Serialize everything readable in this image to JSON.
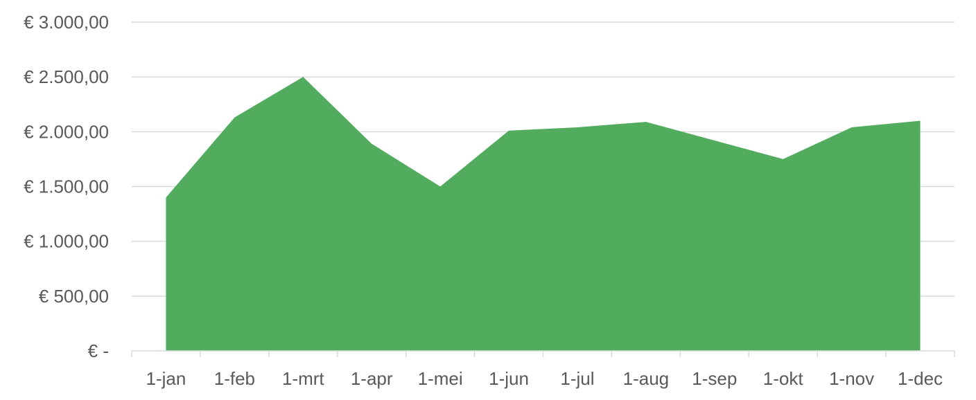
{
  "chart_data": {
    "type": "area",
    "categories": [
      "1-jan",
      "1-feb",
      "1-mrt",
      "1-apr",
      "1-mei",
      "1-jun",
      "1-jul",
      "1-aug",
      "1-sep",
      "1-okt",
      "1-nov",
      "1-dec"
    ],
    "series": [
      {
        "values": [
          1400,
          2130,
          2500,
          1890,
          1500,
          2010,
          2040,
          2090,
          1920,
          1750,
          2040,
          2100
        ],
        "color": "#51ad5d"
      }
    ],
    "ylim": [
      0,
      3000
    ],
    "y_ticks": [
      0,
      500,
      1000,
      1500,
      2000,
      2500,
      3000
    ],
    "y_tick_labels": [
      "€ -",
      "€ 500,00",
      "€ 1.000,00",
      "€ 1.500,00",
      "€ 2.000,00",
      "€ 2.500,00",
      "€ 3.000,00"
    ],
    "grid": true,
    "legend": "none",
    "title": "",
    "xlabel": "",
    "ylabel": ""
  }
}
